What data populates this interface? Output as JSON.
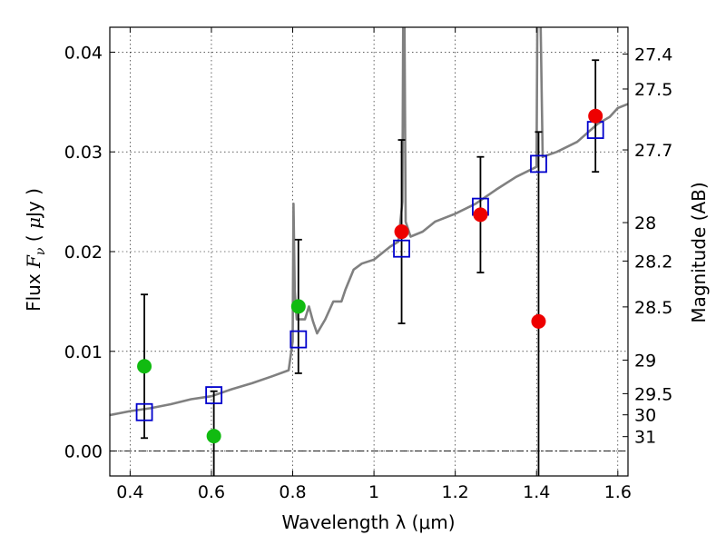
{
  "chart_data": {
    "type": "scatter",
    "xlabel": "Wavelength  λ (μm)",
    "ylabel_parts": {
      "lead": "Flux  ",
      "symbol": "F",
      "subscript": "ν",
      "paren_open": "  (  ",
      "unit_symbol": "μ",
      "unit": "Jy )"
    },
    "y2label": "Magnitude (AB)",
    "xlim": [
      0.35,
      1.625
    ],
    "ylim": [
      -0.0025,
      0.0425
    ],
    "grid": true,
    "x_ticks": [
      {
        "value": 0.4,
        "label": "0.4"
      },
      {
        "value": 0.6,
        "label": "0.6"
      },
      {
        "value": 0.8,
        "label": "0.8"
      },
      {
        "value": 1.0,
        "label": "1"
      },
      {
        "value": 1.2,
        "label": "1.2"
      },
      {
        "value": 1.4,
        "label": "1.4"
      },
      {
        "value": 1.6,
        "label": "1.6"
      }
    ],
    "y_ticks": [
      {
        "value": 0.0,
        "label": "0.00"
      },
      {
        "value": 0.01,
        "label": "0.01"
      },
      {
        "value": 0.02,
        "label": "0.02"
      },
      {
        "value": 0.03,
        "label": "0.03"
      },
      {
        "value": 0.04,
        "label": "0.04"
      }
    ],
    "y2_ticks": [
      {
        "mag": 27.4,
        "label": "27.4"
      },
      {
        "mag": 27.5,
        "label": "27.5"
      },
      {
        "mag": 27.7,
        "label": "27.7"
      },
      {
        "mag": 28,
        "label": "28"
      },
      {
        "mag": 28.2,
        "label": "28.2"
      },
      {
        "mag": 28.5,
        "label": "28.5"
      },
      {
        "mag": 29,
        "label": "29"
      },
      {
        "mag": 29.5,
        "label": "29.5"
      },
      {
        "mag": 30,
        "label": "30"
      },
      {
        "mag": 31,
        "label": "31"
      }
    ],
    "reference_line_y": 0.0,
    "model_spectrum": {
      "color": "#808080",
      "points": [
        [
          0.35,
          0.0036
        ],
        [
          0.4,
          0.004
        ],
        [
          0.45,
          0.0043
        ],
        [
          0.5,
          0.0047
        ],
        [
          0.55,
          0.0052
        ],
        [
          0.6,
          0.0055
        ],
        [
          0.65,
          0.0062
        ],
        [
          0.7,
          0.0068
        ],
        [
          0.75,
          0.0075
        ],
        [
          0.79,
          0.0081
        ],
        [
          0.8,
          0.011
        ],
        [
          0.802,
          0.0248
        ],
        [
          0.805,
          0.016
        ],
        [
          0.81,
          0.0132
        ],
        [
          0.83,
          0.0132
        ],
        [
          0.84,
          0.0145
        ],
        [
          0.85,
          0.013
        ],
        [
          0.86,
          0.0118
        ],
        [
          0.88,
          0.0132
        ],
        [
          0.9,
          0.015
        ],
        [
          0.92,
          0.015
        ],
        [
          0.93,
          0.0162
        ],
        [
          0.95,
          0.0182
        ],
        [
          0.97,
          0.0188
        ],
        [
          1.0,
          0.0192
        ],
        [
          1.04,
          0.0205
        ],
        [
          1.06,
          0.021
        ],
        [
          1.07,
          0.025
        ],
        [
          1.072,
          0.043
        ],
        [
          1.075,
          0.043
        ],
        [
          1.078,
          0.023
        ],
        [
          1.09,
          0.0215
        ],
        [
          1.12,
          0.022
        ],
        [
          1.15,
          0.023
        ],
        [
          1.2,
          0.0238
        ],
        [
          1.25,
          0.0248
        ],
        [
          1.3,
          0.0262
        ],
        [
          1.35,
          0.0275
        ],
        [
          1.4,
          0.0285
        ],
        [
          1.402,
          0.043
        ],
        [
          1.41,
          0.043
        ],
        [
          1.415,
          0.0295
        ],
        [
          1.45,
          0.03
        ],
        [
          1.5,
          0.031
        ],
        [
          1.55,
          0.0328
        ],
        [
          1.58,
          0.0335
        ],
        [
          1.6,
          0.0344
        ],
        [
          1.625,
          0.0348
        ]
      ]
    },
    "series": [
      {
        "marker": "open-square",
        "color": "#0000cc",
        "points": [
          {
            "x": 0.435,
            "y": 0.0039
          },
          {
            "x": 0.606,
            "y": 0.0056
          },
          {
            "x": 0.814,
            "y": 0.0112
          },
          {
            "x": 1.068,
            "y": 0.0203
          },
          {
            "x": 1.262,
            "y": 0.0245
          },
          {
            "x": 1.405,
            "y": 0.0288
          },
          {
            "x": 1.545,
            "y": 0.0322
          }
        ]
      },
      {
        "marker": "filled-circle",
        "color": "#11bb11",
        "points": [
          {
            "x": 0.435,
            "y": 0.0085,
            "err": 0.0072
          },
          {
            "x": 0.606,
            "y": 0.0015,
            "err": 0.0045
          },
          {
            "x": 0.814,
            "y": 0.0145,
            "err": 0.0067
          }
        ]
      },
      {
        "marker": "filled-circle",
        "color": "#ee0000",
        "points": [
          {
            "x": 1.068,
            "y": 0.022,
            "err": 0.0092
          },
          {
            "x": 1.262,
            "y": 0.0237,
            "err": 0.0058
          },
          {
            "x": 1.405,
            "y": 0.013,
            "err": 0.019
          },
          {
            "x": 1.545,
            "y": 0.0336,
            "err": 0.0056
          }
        ]
      }
    ]
  }
}
